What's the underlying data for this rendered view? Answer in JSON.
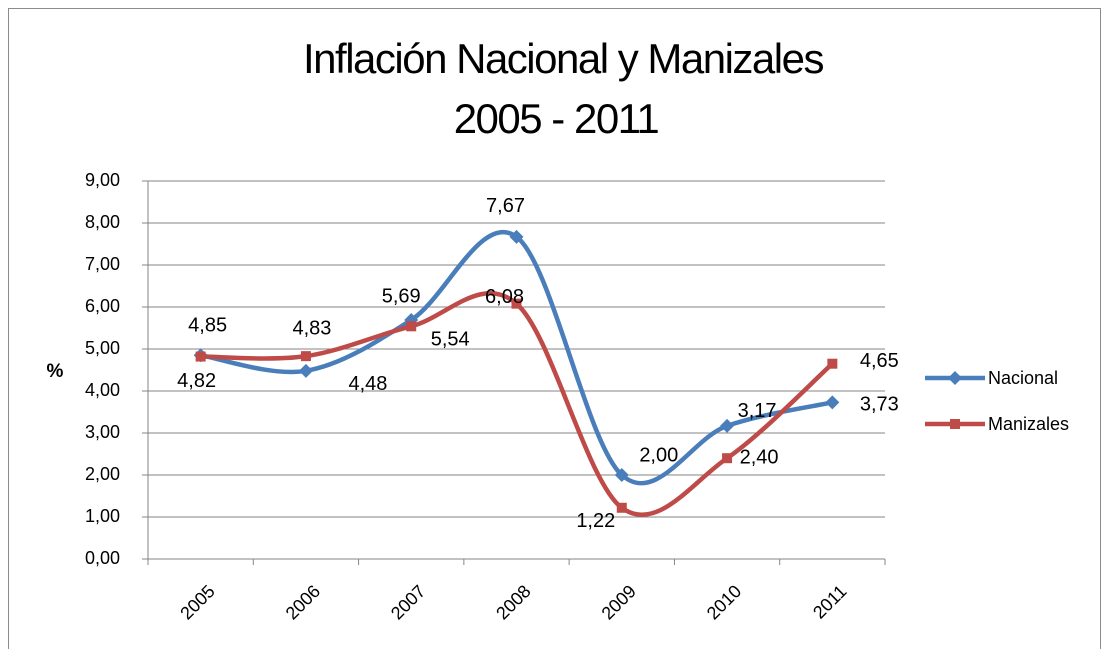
{
  "chart_data": {
    "type": "line",
    "title": [
      "Inflación Nacional y Manizales",
      "2005 - 2011"
    ],
    "y_label": "%",
    "categories": [
      "2005",
      "2006",
      "2007",
      "2008",
      "2009",
      "2010",
      "2011"
    ],
    "series": [
      {
        "name": "Nacional",
        "color": "#4a7ebb",
        "marker": "diamond",
        "values": [
          4.85,
          4.48,
          5.69,
          7.67,
          2.0,
          3.17,
          3.73
        ],
        "value_labels": [
          "4,85",
          "4,48",
          "5,69",
          "7,67",
          "2,00",
          "3,17",
          "3,73"
        ]
      },
      {
        "name": "Manizales",
        "color": "#be4b48",
        "marker": "square",
        "values": [
          4.82,
          4.83,
          5.54,
          6.08,
          1.22,
          2.4,
          4.65
        ],
        "value_labels": [
          "4,82",
          "4,83",
          "5,54",
          "6,08",
          "1,22",
          "2,40",
          "4,65"
        ]
      }
    ],
    "ylim": [
      0,
      9
    ],
    "yticks": [
      {
        "value": 0,
        "label": "0,00"
      },
      {
        "value": 1,
        "label": "1,00"
      },
      {
        "value": 2,
        "label": "2,00"
      },
      {
        "value": 3,
        "label": "3,00"
      },
      {
        "value": 4,
        "label": "4,00"
      },
      {
        "value": 5,
        "label": "5,00"
      },
      {
        "value": 6,
        "label": "6,00"
      },
      {
        "value": 7,
        "label": "7,00"
      },
      {
        "value": 8,
        "label": "8,00"
      },
      {
        "value": 9,
        "label": "9,00"
      }
    ],
    "grid": true,
    "smooth": true,
    "legend": "right"
  }
}
